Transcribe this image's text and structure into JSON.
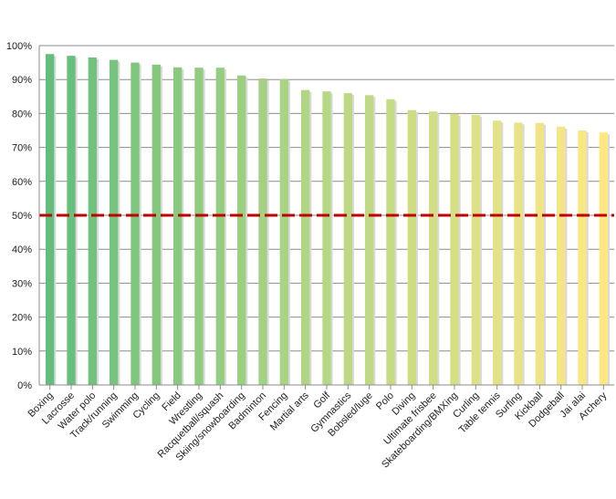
{
  "chart_data": {
    "type": "bar",
    "title": "",
    "xlabel": "",
    "ylabel": "",
    "ylim": [
      0,
      100
    ],
    "yticks": [
      "0%",
      "10%",
      "20%",
      "30%",
      "40%",
      "50%",
      "60%",
      "70%",
      "80%",
      "90%",
      "100%"
    ],
    "grid": true,
    "legend": "none",
    "reference_line": {
      "value": 50,
      "color": "#c00000",
      "style": "dashed"
    },
    "categories": [
      "Boxing",
      "Lacrosse",
      "Water polo",
      "Track/running",
      "Swimming",
      "Cycling",
      "Field",
      "Wrestling",
      "Racquetball/squash",
      "Skiing/snowboarding",
      "Badminton",
      "Fencing",
      "Martial arts",
      "Golf",
      "Gymnastics",
      "Bobsled/luge",
      "Polo",
      "Diving",
      "Ultimate frisbee",
      "Skateboarding/BMXing",
      "Curling",
      "Table tennis",
      "Surfing",
      "Kickball",
      "Dodgeball",
      "Jai alai",
      "Archery"
    ],
    "values": [
      97.5,
      97,
      96.5,
      95.8,
      95,
      94.4,
      93.6,
      93.5,
      93.5,
      91.2,
      90.3,
      90.2,
      86.9,
      86.5,
      86,
      85.4,
      84.2,
      81,
      80.6,
      79.9,
      79.6,
      77.9,
      77.3,
      77.2,
      76.1,
      75,
      74.4
    ],
    "colors": {
      "start": "#63be7b",
      "mid": "#b5d884",
      "end": "#ffe884",
      "grid": "#8c8c8c",
      "axis": "#8c8c8c"
    }
  }
}
